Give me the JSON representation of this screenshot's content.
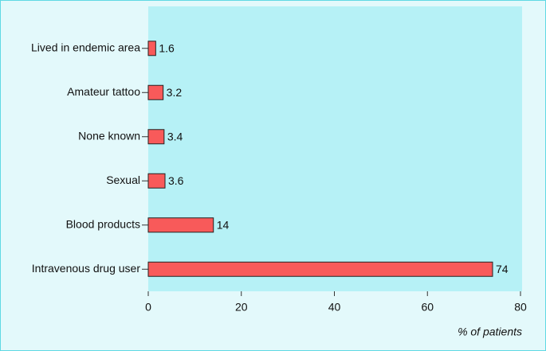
{
  "chart_data": {
    "type": "bar",
    "orientation": "horizontal",
    "categories": [
      "Lived in endemic area",
      "Amateur tattoo",
      "None known",
      "Sexual",
      "Blood products",
      "Intravenous drug user"
    ],
    "values": [
      1.6,
      3.2,
      3.4,
      3.6,
      14,
      74
    ],
    "color": "#f85a5a",
    "xlabel": "% of patients",
    "xlim": [
      0,
      80
    ],
    "xticks": [
      0,
      20,
      40,
      60,
      80
    ]
  }
}
